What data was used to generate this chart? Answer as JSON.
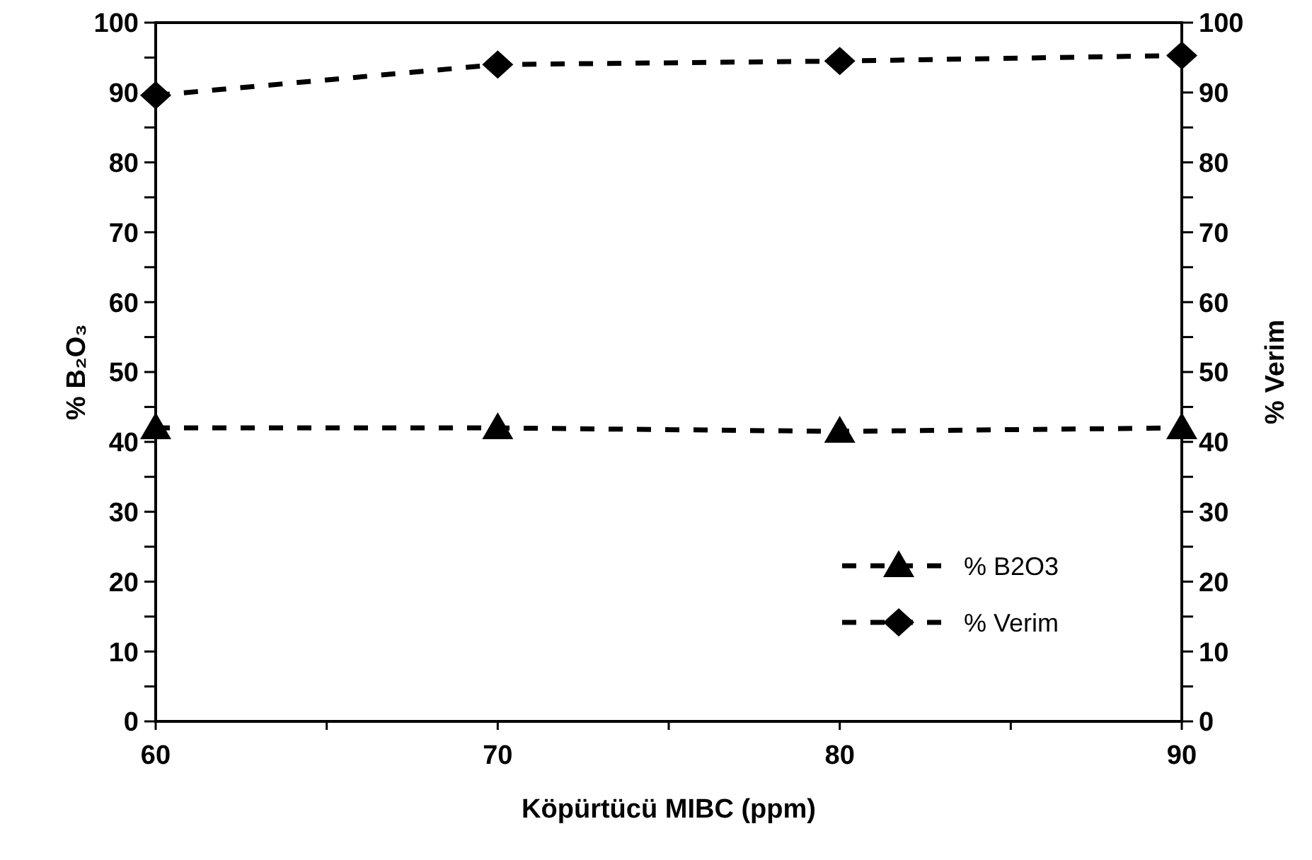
{
  "chart_data": {
    "type": "line",
    "xlabel": "Köpürtücü MIBC (ppm)",
    "ylabel": "% B₂O₃",
    "y2label": "% Verim",
    "x": [
      60,
      70,
      80,
      90
    ],
    "series": [
      {
        "name": "% B2O3",
        "color": "#000000",
        "marker": "triangle",
        "values": [
          42,
          42,
          41.5,
          42
        ]
      },
      {
        "name": "% Verim",
        "color": "#000000",
        "marker": "diamond",
        "values": [
          89.6,
          94,
          94.5,
          95.3
        ]
      }
    ],
    "xlim": [
      60,
      90
    ],
    "xticks": [
      60,
      {
        "value": 65,
        "label": null
      },
      70,
      {
        "value": 75,
        "label": null
      },
      80,
      {
        "value": 85,
        "label": null
      },
      90
    ],
    "ylim": [
      0,
      100
    ],
    "yticks": [
      0,
      {
        "value": 5,
        "label": null
      },
      10,
      {
        "value": 15,
        "label": null
      },
      20,
      {
        "value": 25,
        "label": null
      },
      30,
      {
        "value": 35,
        "label": null
      },
      40,
      {
        "value": 45,
        "label": null
      },
      50,
      {
        "value": 55,
        "label": null
      },
      60,
      {
        "value": 65,
        "label": null
      },
      70,
      {
        "value": 75,
        "label": null
      },
      80,
      {
        "value": 85,
        "label": null
      },
      90,
      {
        "value": 95,
        "label": null
      },
      100
    ],
    "y2lim": [
      0,
      100
    ],
    "y2ticks": [
      0,
      {
        "value": 5,
        "label": null
      },
      10,
      {
        "value": 15,
        "label": null
      },
      20,
      {
        "value": 25,
        "label": null
      },
      30,
      {
        "value": 35,
        "label": null
      },
      40,
      {
        "value": 45,
        "label": null
      },
      50,
      {
        "value": 55,
        "label": null
      },
      60,
      {
        "value": 65,
        "label": null
      },
      70,
      {
        "value": 75,
        "label": null
      },
      80,
      {
        "value": 85,
        "label": null
      },
      90,
      {
        "value": 95,
        "label": null
      },
      100
    ],
    "line_style": "dashed",
    "grid": false,
    "legend": "bottom right"
  }
}
